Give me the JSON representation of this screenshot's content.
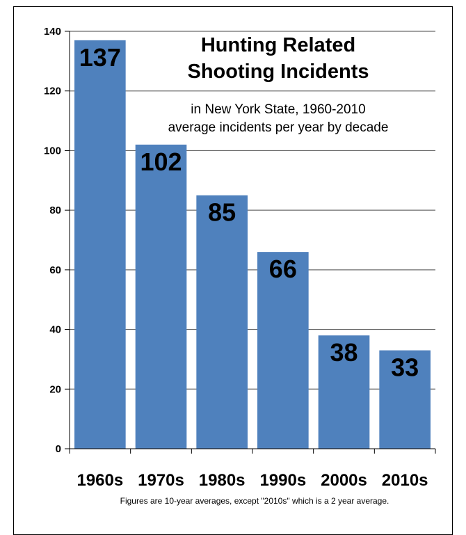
{
  "chart_data": {
    "type": "bar",
    "title": [
      "Hunting Related",
      "Shooting Incidents"
    ],
    "subtitle": [
      "in New York State, 1960-2010",
      "average incidents per year by decade"
    ],
    "categories": [
      "1960s",
      "1970s",
      "1980s",
      "1990s",
      "2000s",
      "2010s"
    ],
    "values": [
      137,
      102,
      85,
      66,
      38,
      33
    ],
    "data_labels": [
      "137",
      "102",
      "85",
      "66",
      "38",
      "33"
    ],
    "ylim": [
      0,
      140
    ],
    "yticks": [
      0,
      20,
      40,
      60,
      80,
      100,
      120,
      140
    ],
    "grid": true,
    "bar_color": "#4f81bd",
    "footnote": "Figures are 10-year averages, except \"2010s\" which is a 2 year average."
  }
}
